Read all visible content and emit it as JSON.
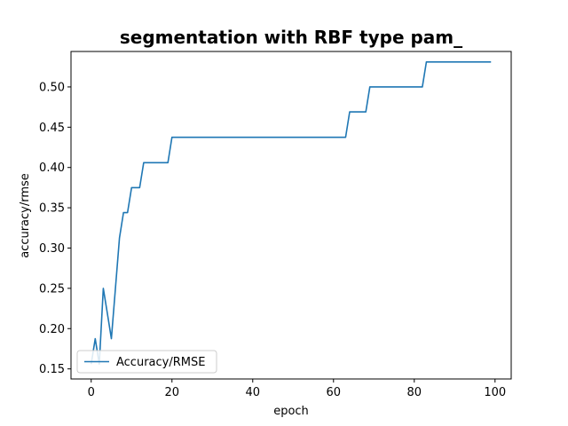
{
  "chart_data": {
    "type": "line",
    "title": "segmentation with RBF type pam_",
    "xlabel": "epoch",
    "ylabel": "accuracy/rmse",
    "xlim": [
      -5,
      104
    ],
    "ylim": [
      0.1375,
      0.544
    ],
    "xticks": [
      0,
      20,
      40,
      60,
      80,
      100
    ],
    "yticks": [
      0.15,
      0.2,
      0.25,
      0.3,
      0.35,
      0.4,
      0.45,
      0.5
    ],
    "ytick_labels": [
      "0.15",
      "0.20",
      "0.25",
      "0.30",
      "0.35",
      "0.40",
      "0.45",
      "0.50"
    ],
    "grid": false,
    "legend_position": "lower left",
    "line_color": "#1f77b4",
    "series": [
      {
        "name": "Accuracy/RMSE",
        "x": [
          0,
          1,
          2,
          3,
          4,
          5,
          6,
          7,
          8,
          9,
          10,
          11,
          12,
          13,
          19,
          20,
          63,
          64,
          68,
          69,
          82,
          83,
          99
        ],
        "y": [
          0.156,
          0.1875,
          0.156,
          0.25,
          0.219,
          0.1875,
          0.25,
          0.3125,
          0.344,
          0.344,
          0.375,
          0.375,
          0.375,
          0.406,
          0.406,
          0.4375,
          0.4375,
          0.469,
          0.469,
          0.5,
          0.5,
          0.531,
          0.531
        ]
      }
    ]
  }
}
